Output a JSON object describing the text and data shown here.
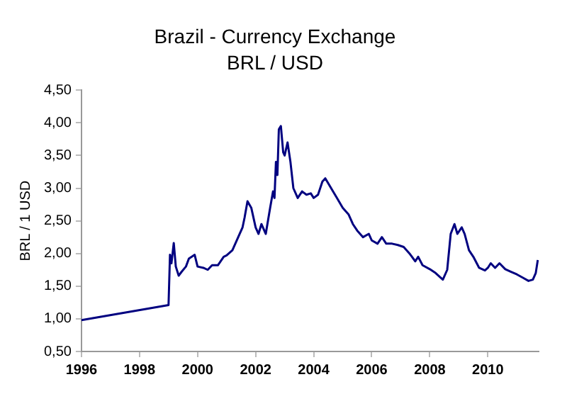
{
  "chart_data": {
    "type": "line",
    "title": "Brazil - Currency Exchange",
    "subtitle": "BRL / USD",
    "ylabel": "BRL / 1 USD",
    "x": [
      1996.0,
      1999.0,
      1999.05,
      1999.1,
      1999.18,
      1999.25,
      1999.35,
      1999.45,
      1999.6,
      1999.7,
      1999.8,
      1999.9,
      2000.0,
      2000.2,
      2000.35,
      2000.5,
      2000.7,
      2000.9,
      2001.0,
      2001.2,
      2001.4,
      2001.55,
      2001.62,
      2001.72,
      2001.85,
      2002.0,
      2002.1,
      2002.2,
      2002.35,
      2002.5,
      2002.6,
      2002.65,
      2002.7,
      2002.75,
      2002.8,
      2002.87,
      2002.95,
      2003.0,
      2003.1,
      2003.2,
      2003.3,
      2003.45,
      2003.6,
      2003.75,
      2003.9,
      2004.0,
      2004.15,
      2004.3,
      2004.4,
      2004.6,
      2004.8,
      2005.0,
      2005.2,
      2005.35,
      2005.5,
      2005.7,
      2005.9,
      2006.0,
      2006.2,
      2006.35,
      2006.5,
      2006.7,
      2006.9,
      2007.1,
      2007.3,
      2007.5,
      2007.6,
      2007.75,
      2008.0,
      2008.2,
      2008.45,
      2008.6,
      2008.72,
      2008.85,
      2008.95,
      2009.1,
      2009.2,
      2009.35,
      2009.5,
      2009.7,
      2009.9,
      2010.0,
      2010.1,
      2010.25,
      2010.4,
      2010.6,
      2010.8,
      2011.0,
      2011.2,
      2011.4,
      2011.55,
      2011.65,
      2011.72
    ],
    "series": [
      {
        "color": "#000080",
        "values": [
          0.98,
          1.21,
          1.98,
          1.85,
          2.16,
          1.8,
          1.66,
          1.72,
          1.8,
          1.92,
          1.95,
          1.98,
          1.8,
          1.78,
          1.75,
          1.82,
          1.82,
          1.95,
          1.97,
          2.05,
          2.25,
          2.4,
          2.55,
          2.8,
          2.7,
          2.4,
          2.3,
          2.45,
          2.3,
          2.7,
          2.95,
          2.85,
          3.4,
          3.2,
          3.9,
          3.95,
          3.55,
          3.5,
          3.7,
          3.4,
          3.0,
          2.85,
          2.95,
          2.9,
          2.92,
          2.85,
          2.9,
          3.1,
          3.15,
          3.0,
          2.85,
          2.7,
          2.6,
          2.45,
          2.35,
          2.25,
          2.3,
          2.2,
          2.15,
          2.25,
          2.15,
          2.15,
          2.13,
          2.1,
          2.0,
          1.88,
          1.95,
          1.82,
          1.76,
          1.7,
          1.6,
          1.75,
          2.3,
          2.45,
          2.3,
          2.4,
          2.3,
          2.05,
          1.95,
          1.78,
          1.74,
          1.78,
          1.85,
          1.78,
          1.85,
          1.76,
          1.72,
          1.68,
          1.63,
          1.58,
          1.6,
          1.7,
          1.9
        ]
      }
    ],
    "xlim": [
      1996,
      2011.75
    ],
    "xticks": [
      1996,
      1998,
      2000,
      2002,
      2004,
      2006,
      2008,
      2010
    ],
    "ylim": [
      0.5,
      4.5
    ],
    "yticks": [
      {
        "value": 0.5,
        "label": "0,50"
      },
      {
        "value": 1,
        "label": "1,00"
      },
      {
        "value": 1.5,
        "label": "1,50"
      },
      {
        "value": 2,
        "label": "2,00"
      },
      {
        "value": 2.5,
        "label": "2,50"
      },
      {
        "value": 3,
        "label": "3,00"
      },
      {
        "value": 3.5,
        "label": "3,50"
      },
      {
        "value": 4,
        "label": "4,00"
      },
      {
        "value": 4.5,
        "label": "4,50"
      }
    ],
    "grid": false,
    "legend": false,
    "marker": "none",
    "line_style": "solid"
  }
}
